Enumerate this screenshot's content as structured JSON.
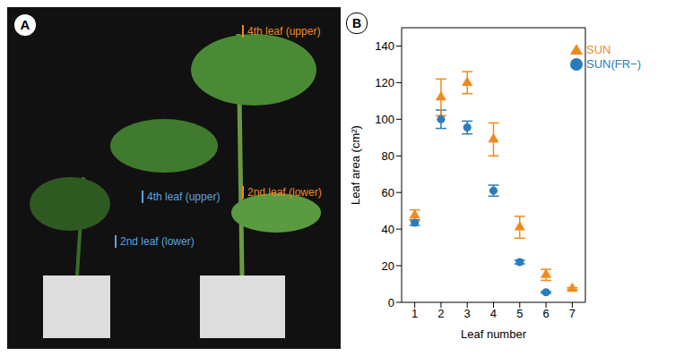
{
  "chart_data": {
    "type": "scatter",
    "title": "B",
    "x_label": "Leaf number",
    "y_label": "Leaf area (cm²)",
    "x": [
      1,
      2,
      3,
      4,
      5,
      6,
      7
    ],
    "xlim": [
      0.5,
      7.5
    ],
    "xticks": [
      1,
      2,
      3,
      4,
      5,
      6,
      7
    ],
    "ylim": [
      0,
      150
    ],
    "yticks": [
      0,
      20,
      40,
      60,
      80,
      100,
      120,
      140
    ],
    "grid": false,
    "legend": "upper right",
    "series": [
      {
        "name": "SUN(FR−)",
        "color": "#2b7bba",
        "marker": "circle",
        "values": [
          43.5,
          100,
          95.5,
          61,
          22,
          5.5,
          null
        ],
        "errors": [
          1.5,
          5,
          3.5,
          3,
          1,
          0.5,
          null
        ]
      },
      {
        "name": "SUN",
        "color": "#ee8a1e",
        "marker": "triangle",
        "values": [
          47.5,
          112,
          120,
          89,
          41,
          15,
          7.5
        ],
        "errors": [
          3,
          10,
          6,
          9,
          6,
          3,
          0.5
        ]
      }
    ]
  },
  "photo": {
    "label": "A",
    "annotations": [
      {
        "text": "4th leaf (upper)",
        "color": "#ee8a1e"
      },
      {
        "text": "2nd leaf (lower)",
        "color": "#ee8a1e"
      },
      {
        "text": "4th leaf (upper)",
        "color": "#5ba3e0"
      },
      {
        "text": "2nd leaf (lower)",
        "color": "#5ba3e0"
      }
    ]
  }
}
